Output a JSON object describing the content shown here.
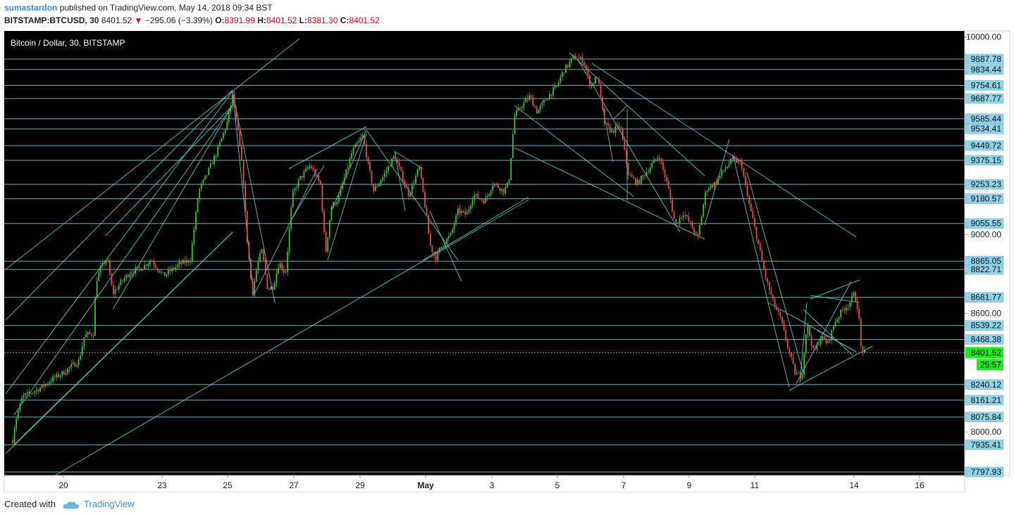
{
  "header": {
    "author": "sumastardon",
    "published_text": "published on TradingView.com, May 14, 2018 09:34 BST",
    "symbol": "BITSTAMP:BTCUSD, 30",
    "last": "8401.52",
    "change": "−295.06 (−3.39%)",
    "o_label": "O:",
    "o_value": "8391.99",
    "h_label": "H:",
    "h_value": "8401.52",
    "l_label": "L:",
    "l_value": "8381.30",
    "c_label": "C:",
    "c_value": "8401.52"
  },
  "footer": {
    "created_with": "Created with",
    "brand": "TradingView"
  },
  "colors": {
    "background": "#000000",
    "line": "#5fcfc3",
    "level": "#86c2d6",
    "up": "#3fbf3f",
    "down": "#e05050",
    "current": "#1ee81e",
    "axis_label_bg": "#8fd3e8"
  },
  "chart_data": {
    "type": "candlestick",
    "title": "Bitcoin / Dollar, 30, BITSTAMP",
    "ylim": [
      7780,
      10030
    ],
    "x_ticks": [
      "20",
      "23",
      "25",
      "27",
      "29",
      "May",
      "3",
      "5",
      "7",
      "9",
      "11",
      "14",
      "16"
    ],
    "y_ticks": [
      "10000.00",
      "9000.00",
      "8600.00",
      "8000.00"
    ],
    "price_levels": [
      "9887.78",
      "9834.44",
      "9754.61",
      "9687.77",
      "9585.44",
      "9534.41",
      "9449.72",
      "9375.15",
      "9253.23",
      "9180.57",
      "9055.55",
      "8865.05",
      "8822.71",
      "8681.77",
      "8539.22",
      "8468.38",
      "8240.12",
      "8161.21",
      "8075.84",
      "7935.41",
      "7797.93"
    ],
    "current_price": "8401.52",
    "countdown": "25:57",
    "price_path": [
      [
        18,
        7960
      ],
      [
        22,
        8060
      ],
      [
        32,
        8180
      ],
      [
        45,
        8200
      ],
      [
        60,
        8230
      ],
      [
        75,
        8270
      ],
      [
        90,
        8300
      ],
      [
        100,
        8330
      ],
      [
        112,
        8360
      ],
      [
        120,
        8490
      ],
      [
        133,
        8500
      ],
      [
        136,
        8760
      ],
      [
        143,
        8830
      ],
      [
        152,
        8880
      ],
      [
        160,
        8700
      ],
      [
        172,
        8760
      ],
      [
        185,
        8810
      ],
      [
        200,
        8830
      ],
      [
        215,
        8870
      ],
      [
        232,
        8790
      ],
      [
        255,
        8850
      ],
      [
        270,
        8870
      ],
      [
        282,
        9220
      ],
      [
        293,
        9300
      ],
      [
        308,
        9420
      ],
      [
        322,
        9560
      ],
      [
        330,
        9700
      ],
      [
        338,
        9510
      ],
      [
        345,
        9300
      ],
      [
        350,
        9000
      ],
      [
        358,
        8700
      ],
      [
        366,
        8860
      ],
      [
        372,
        8920
      ],
      [
        380,
        8720
      ],
      [
        388,
        8740
      ],
      [
        396,
        8860
      ],
      [
        405,
        8800
      ],
      [
        415,
        9200
      ],
      [
        425,
        9280
      ],
      [
        440,
        9350
      ],
      [
        455,
        9250
      ],
      [
        462,
        8900
      ],
      [
        470,
        9140
      ],
      [
        480,
        9180
      ],
      [
        490,
        9300
      ],
      [
        500,
        9420
      ],
      [
        515,
        9500
      ],
      [
        522,
        9360
      ],
      [
        530,
        9220
      ],
      [
        545,
        9300
      ],
      [
        560,
        9400
      ],
      [
        570,
        9300
      ],
      [
        580,
        9200
      ],
      [
        595,
        9340
      ],
      [
        605,
        9100
      ],
      [
        610,
        8950
      ],
      [
        618,
        8880
      ],
      [
        628,
        8950
      ],
      [
        640,
        9000
      ],
      [
        650,
        9120
      ],
      [
        662,
        9100
      ],
      [
        672,
        9200
      ],
      [
        688,
        9170
      ],
      [
        700,
        9260
      ],
      [
        715,
        9220
      ],
      [
        722,
        9260
      ],
      [
        730,
        9600
      ],
      [
        740,
        9650
      ],
      [
        752,
        9700
      ],
      [
        762,
        9620
      ],
      [
        778,
        9700
      ],
      [
        790,
        9750
      ],
      [
        800,
        9830
      ],
      [
        815,
        9900
      ],
      [
        828,
        9880
      ],
      [
        838,
        9750
      ],
      [
        848,
        9800
      ],
      [
        858,
        9560
      ],
      [
        868,
        9520
      ],
      [
        880,
        9550
      ],
      [
        892,
        9300
      ],
      [
        905,
        9260
      ],
      [
        920,
        9330
      ],
      [
        935,
        9400
      ],
      [
        948,
        9240
      ],
      [
        958,
        9050
      ],
      [
        970,
        9110
      ],
      [
        980,
        9050
      ],
      [
        990,
        8980
      ],
      [
        1002,
        9230
      ],
      [
        1015,
        9260
      ],
      [
        1028,
        9330
      ],
      [
        1040,
        9380
      ],
      [
        1052,
        9360
      ],
      [
        1060,
        9200
      ],
      [
        1070,
        9050
      ],
      [
        1078,
        8920
      ],
      [
        1088,
        8760
      ],
      [
        1098,
        8650
      ],
      [
        1108,
        8570
      ],
      [
        1118,
        8430
      ],
      [
        1128,
        8300
      ],
      [
        1138,
        8280
      ],
      [
        1145,
        8550
      ],
      [
        1155,
        8400
      ],
      [
        1165,
        8480
      ],
      [
        1175,
        8450
      ],
      [
        1185,
        8560
      ],
      [
        1196,
        8620
      ],
      [
        1205,
        8650
      ],
      [
        1212,
        8700
      ],
      [
        1218,
        8620
      ],
      [
        1222,
        8420
      ],
      [
        1228,
        8400
      ]
    ]
  }
}
